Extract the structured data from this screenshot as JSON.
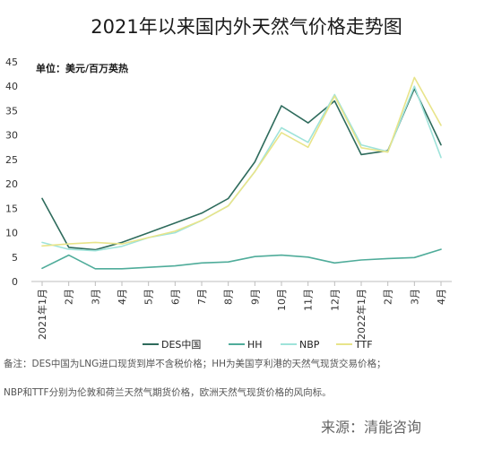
{
  "title": "2021年以来国内外天然气价格走势图",
  "note_line1": "备注：DES中国为LNG进口现货到岸不含税价格；HH为美国亨利港的天然气现货交易价格；",
  "note_line2": "NBP和TTF分别为伦敦和荷兰天然气期货价格，欧洲天然气现货价格的风向标。",
  "source": "来源：清能咨询",
  "chart_data": {
    "type": "line",
    "unit_label": "单位：美元/百万英热",
    "categories": [
      "2021年1月",
      "2月",
      "3月",
      "4月",
      "5月",
      "6月",
      "7月",
      "8月",
      "9月",
      "10月",
      "11月",
      "12月",
      "2022年1月",
      "2月",
      "3月",
      "4月"
    ],
    "ylim": [
      0,
      45
    ],
    "yticks": [
      0,
      5,
      10,
      15,
      20,
      25,
      30,
      35,
      40,
      45
    ],
    "grid": false,
    "legend_position": "bottom",
    "series": [
      {
        "name": "DES中国",
        "color": "#2e6b5c",
        "values": [
          17,
          7,
          6.5,
          8,
          10,
          12,
          14,
          17,
          24.5,
          36,
          32.5,
          37,
          26,
          26.8,
          39.5,
          28
        ]
      },
      {
        "name": "HH",
        "color": "#4fac9a",
        "values": [
          2.7,
          5.4,
          2.6,
          2.6,
          2.9,
          3.2,
          3.8,
          4.0,
          5.1,
          5.4,
          5.0,
          3.8,
          4.4,
          4.7,
          4.9,
          6.6
        ]
      },
      {
        "name": "NBP",
        "color": "#9fe3da",
        "values": [
          8.0,
          6.6,
          6.3,
          7.2,
          9.0,
          10.0,
          12.5,
          15.5,
          22.5,
          31.5,
          28.5,
          38.3,
          28,
          26.6,
          40,
          25.4
        ]
      },
      {
        "name": "TTF",
        "color": "#e8e48a",
        "values": [
          7.3,
          7.7,
          8.0,
          7.7,
          9.0,
          10.3,
          12.5,
          15.5,
          22.5,
          30.5,
          27.5,
          38,
          27.4,
          26.5,
          41.8,
          32
        ]
      }
    ]
  }
}
